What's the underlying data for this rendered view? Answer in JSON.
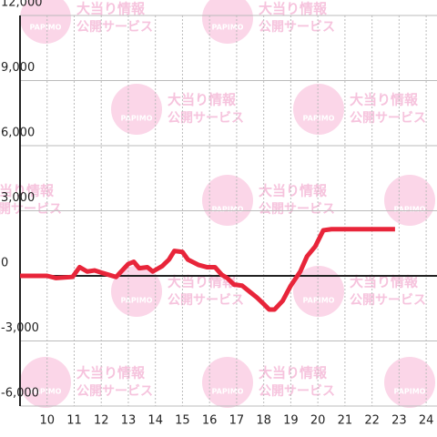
{
  "chart_data": {
    "type": "line",
    "x": [
      9,
      10,
      10.33,
      10.94,
      11.2,
      11.48,
      11.75,
      12.0,
      12.55,
      13.0,
      13.2,
      13.4,
      13.7,
      13.9,
      14.25,
      14.5,
      14.7,
      15.0,
      15.2,
      15.6,
      15.9,
      16.2,
      16.45,
      16.65,
      16.9,
      17.2,
      17.5,
      17.75,
      18.0,
      18.2,
      18.4,
      18.7,
      19.0,
      19.35,
      19.6,
      19.9,
      20.2,
      20.5,
      22.85
    ],
    "series": [
      {
        "color": "#e8253a",
        "values": [
          0,
          0,
          -100,
          -50,
          400,
          200,
          250,
          150,
          -50,
          550,
          650,
          350,
          400,
          200,
          450,
          750,
          1150,
          1100,
          750,
          500,
          400,
          400,
          50,
          -100,
          -400,
          -450,
          -750,
          -1000,
          -1300,
          -1550,
          -1550,
          -1150,
          -450,
          200,
          900,
          1350,
          2100,
          2150,
          2150
        ]
      }
    ],
    "xlim": [
      9,
      24.4
    ],
    "xticks": [
      10,
      11,
      12,
      13,
      14,
      15,
      16,
      17,
      18,
      19,
      20,
      21,
      22,
      23,
      24
    ],
    "ylim": [
      -6000,
      12000
    ],
    "yticks": [
      {
        "value": -6000,
        "label": "-6,000"
      },
      {
        "value": -3000,
        "label": "-3,000"
      },
      0,
      {
        "value": 3000,
        "label": "3,000"
      },
      {
        "value": 6000,
        "label": "6,000"
      },
      {
        "value": 9000,
        "label": "9,000"
      },
      {
        "value": 12000,
        "label": "12,000"
      }
    ],
    "grid": true,
    "watermark": {
      "title": "大当り情報",
      "subtitle": "公開サービス",
      "logo": "PAPIMO"
    }
  }
}
